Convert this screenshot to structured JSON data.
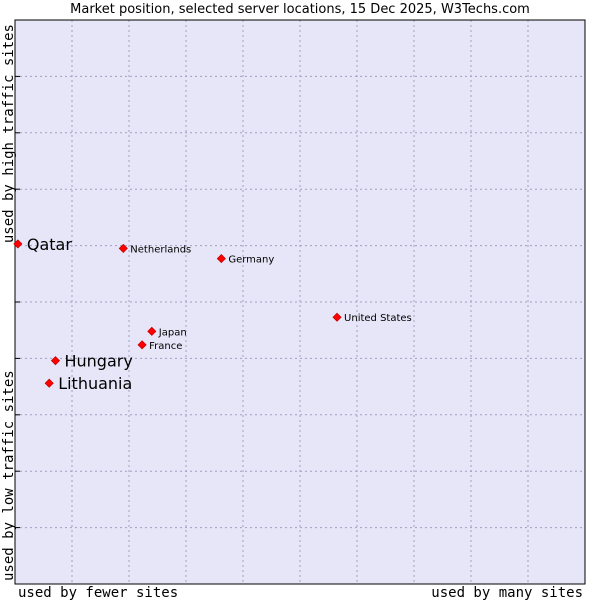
{
  "chart_data": {
    "type": "scatter",
    "title": "Market position, selected server locations, 15 Dec 2025, W3Techs.com",
    "xlabel_left": "used by fewer sites",
    "xlabel_right": "used by many sites",
    "ylabel_bottom": "used by low traffic sites",
    "ylabel_top": "used by high traffic sites",
    "xlim": [
      0,
      100
    ],
    "ylim": [
      0,
      100
    ],
    "grid": true,
    "colors": {
      "plot_bg": "#e6e6f8",
      "grid": "#a0a0c0",
      "border": "#000000",
      "marker": "#ff0000",
      "marker_edge": "#cc0000"
    },
    "points": [
      {
        "name": "Qatar",
        "x": 0.5,
        "y": 60.3,
        "highlight": true
      },
      {
        "name": "Netherlands",
        "x": 19.0,
        "y": 59.5,
        "highlight": false
      },
      {
        "name": "Germany",
        "x": 36.2,
        "y": 57.7,
        "highlight": false
      },
      {
        "name": "United States",
        "x": 56.5,
        "y": 47.3,
        "highlight": false
      },
      {
        "name": "Japan",
        "x": 24.0,
        "y": 44.8,
        "highlight": false
      },
      {
        "name": "France",
        "x": 22.3,
        "y": 42.4,
        "highlight": false
      },
      {
        "name": "Hungary",
        "x": 7.1,
        "y": 39.6,
        "highlight": true
      },
      {
        "name": "Lithuania",
        "x": 6.0,
        "y": 35.6,
        "highlight": true
      }
    ]
  }
}
